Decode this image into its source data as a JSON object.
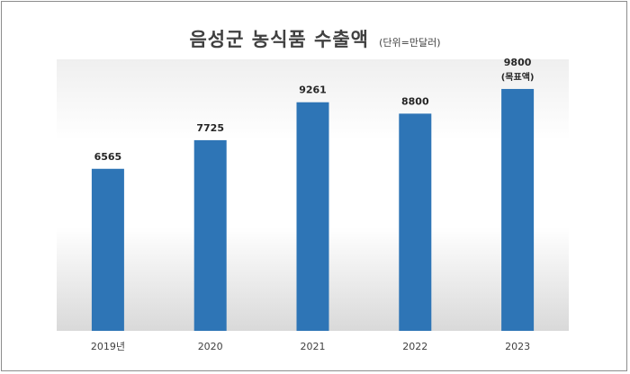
{
  "chart_data": {
    "type": "bar",
    "title": "음성군 농식품 수출액",
    "unit_label": "(단위=만달러)",
    "categories": [
      "2019년",
      "2020",
      "2021",
      "2022",
      "2023"
    ],
    "values": [
      6565,
      7725,
      9261,
      8800,
      9800
    ],
    "data_labels": [
      "6565",
      "7725",
      "9261",
      "8800",
      "9800"
    ],
    "annotations": [
      {
        "category": "2023",
        "text": "(목표액)"
      }
    ],
    "bar_color": "#2e75b6",
    "ylim": [
      0,
      11000
    ],
    "grid": false,
    "legend": "none",
    "xlabel": "",
    "ylabel": ""
  }
}
